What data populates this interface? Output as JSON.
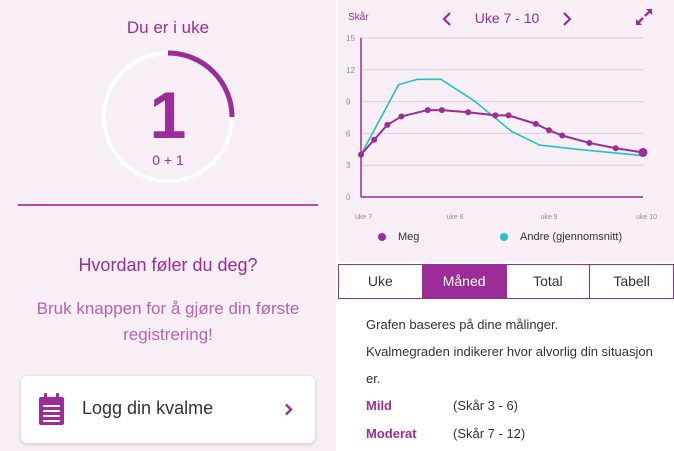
{
  "week_panel": {
    "title": "Du er i uke",
    "week": "1",
    "days": "0 + 1",
    "progress": 0.25
  },
  "prompt": {
    "question": "Hvordan føler du deg?",
    "hint": "Bruk knappen for å gjøre din første registrering!"
  },
  "log_button": {
    "label": "Logg din kvalme",
    "icon": "calendar-icon"
  },
  "chart_header": {
    "score_label": "Skår",
    "range_label": "Uke 7 - 10"
  },
  "tabs": [
    {
      "label": "Uke",
      "active": false
    },
    {
      "label": "Måned",
      "active": true
    },
    {
      "label": "Total",
      "active": false
    },
    {
      "label": "Tabell",
      "active": false
    }
  ],
  "info": {
    "line1": "Grafen baseres på dine målinger.",
    "line2": "Kvalmegraden indikerer hvor alvorlig din situasjon er."
  },
  "severity": [
    {
      "name": "Mild",
      "range": "(Skår 3 - 6)"
    },
    {
      "name": "Moderat",
      "range": "(Skår 7 - 12)"
    }
  ],
  "colors": {
    "primary": "#9b2d98",
    "andre": "#22c3c3",
    "panel_bg": "#f7eef6"
  },
  "chart_data": {
    "type": "line",
    "ylabel": "Skår",
    "ylim": [
      0,
      15
    ],
    "yticks": [
      0,
      3,
      6,
      9,
      12,
      15
    ],
    "xlim": [
      7,
      10
    ],
    "xticks": [
      {
        "value": 7,
        "label": "uke 7"
      },
      {
        "value": 8,
        "label": "uke 8"
      },
      {
        "value": 9,
        "label": "uke 9"
      },
      {
        "value": 10,
        "label": "uke 10"
      }
    ],
    "series": [
      {
        "name": "Meg",
        "color": "#9b2d98",
        "markers": true,
        "points": [
          [
            7.0,
            4.0
          ],
          [
            7.14,
            5.4
          ],
          [
            7.28,
            6.8
          ],
          [
            7.43,
            7.6
          ],
          [
            7.71,
            8.2
          ],
          [
            7.86,
            8.2
          ],
          [
            8.14,
            8.0
          ],
          [
            8.43,
            7.7
          ],
          [
            8.57,
            7.7
          ],
          [
            8.86,
            6.9
          ],
          [
            9.0,
            6.3
          ],
          [
            9.14,
            5.8
          ],
          [
            9.43,
            5.1
          ],
          [
            9.71,
            4.6
          ],
          [
            10.0,
            4.2
          ]
        ]
      },
      {
        "name": "Andre (gjennomsnitt)",
        "color": "#22c3c3",
        "markers": false,
        "points": [
          [
            7.0,
            4.0
          ],
          [
            7.4,
            10.6
          ],
          [
            7.6,
            11.1
          ],
          [
            7.85,
            11.1
          ],
          [
            8.2,
            9.1
          ],
          [
            8.6,
            6.2
          ],
          [
            8.9,
            4.9
          ],
          [
            9.3,
            4.5
          ],
          [
            10.0,
            3.9
          ]
        ]
      }
    ]
  }
}
